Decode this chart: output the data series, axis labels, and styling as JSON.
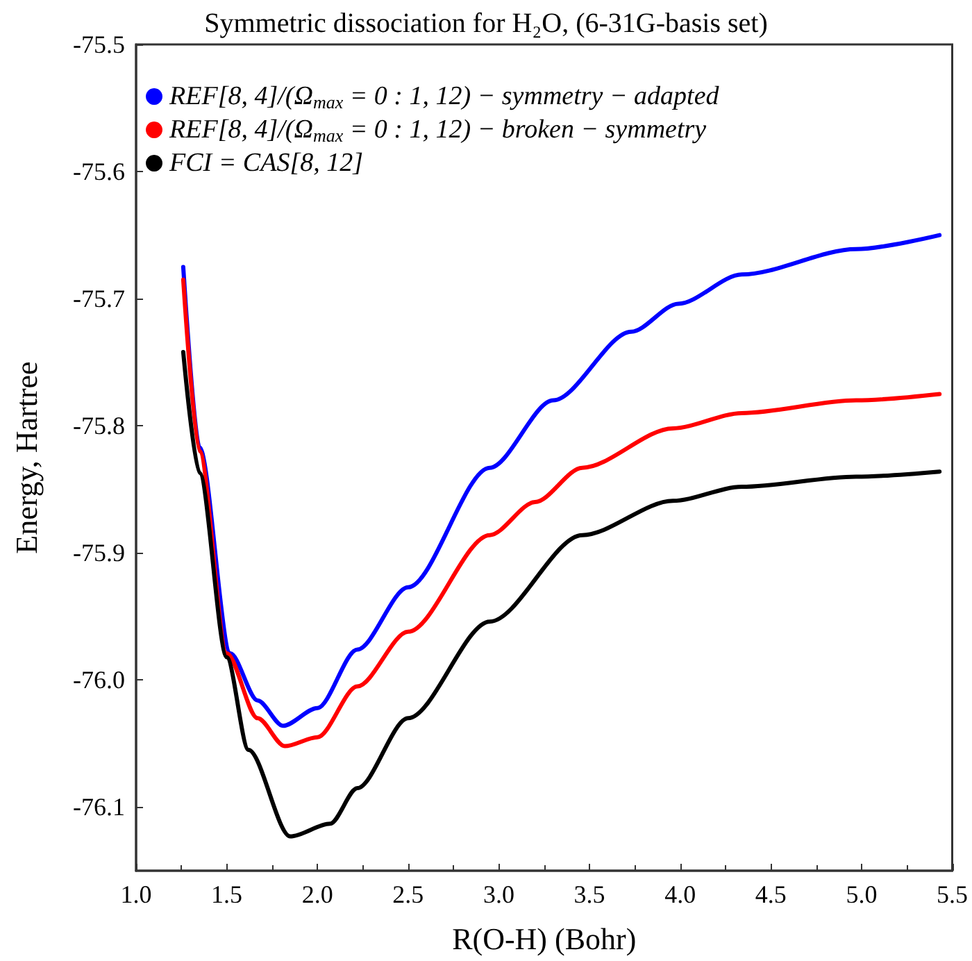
{
  "chart_data": {
    "type": "line",
    "title": "Symmetric dissociation for H₂O, (6-31G-basis set)",
    "xlabel": "R(O-H) (Bohr)",
    "ylabel": "Energy, Hartree",
    "xlim": [
      1.0,
      5.5
    ],
    "xticks": [
      {
        "value": 1,
        "label": "1.0"
      },
      1.5,
      {
        "value": 2,
        "label": "2.0"
      },
      2.5,
      {
        "value": 3,
        "label": "3.0"
      },
      3.5,
      {
        "value": 4,
        "label": "4.0"
      },
      4.5,
      {
        "value": 5,
        "label": "5.0"
      },
      5.5
    ],
    "ylim": [
      -76.15,
      -75.5
    ],
    "yticks": [
      -76.1,
      {
        "value": -76,
        "label": "-76.0"
      },
      -75.9,
      -75.8,
      -75.7,
      -75.6,
      -75.5
    ],
    "grid": false,
    "legend": "top left",
    "series": [
      {
        "name": "REF[8, 4]/(Ω$_{max}$ = 0 : 1, 12) − symmetry − adapted",
        "color": "#0000ff",
        "x": [
          1.26,
          1.35,
          1.52,
          1.67,
          1.81,
          2.0,
          2.22,
          2.5,
          2.95,
          3.3,
          3.73,
          3.99,
          4.34,
          4.97,
          5.43
        ],
        "values": [
          -75.675,
          -75.817,
          -75.979,
          -76.016,
          -76.036,
          -76.022,
          -75.976,
          -75.927,
          -75.833,
          -75.78,
          -75.726,
          -75.704,
          -75.681,
          -75.661,
          -75.65
        ]
      },
      {
        "name": "REF[8, 4]/(Ω$_{max}$ = 0 : 1, 12) − broken − symmetry",
        "color": "#ff0000",
        "x": [
          1.26,
          1.35,
          1.5,
          1.67,
          1.82,
          2.0,
          2.22,
          2.5,
          2.95,
          3.2,
          3.46,
          3.96,
          4.34,
          4.97,
          5.43
        ],
        "values": [
          -75.685,
          -75.82,
          -75.979,
          -76.03,
          -76.052,
          -76.045,
          -76.005,
          -75.962,
          -75.886,
          -75.86,
          -75.833,
          -75.802,
          -75.79,
          -75.78,
          -75.775
        ]
      },
      {
        "name": "FCI = CAS[8, 12]",
        "color": "#000000",
        "x": [
          1.26,
          1.35,
          1.5,
          1.62,
          1.85,
          2.07,
          2.22,
          2.5,
          2.95,
          3.46,
          3.96,
          4.34,
          4.97,
          5.43
        ],
        "values": [
          -75.742,
          -75.837,
          -75.982,
          -76.055,
          -76.123,
          -76.113,
          -76.085,
          -76.03,
          -75.954,
          -75.886,
          -75.859,
          -75.848,
          -75.84,
          -75.836
        ]
      }
    ]
  }
}
